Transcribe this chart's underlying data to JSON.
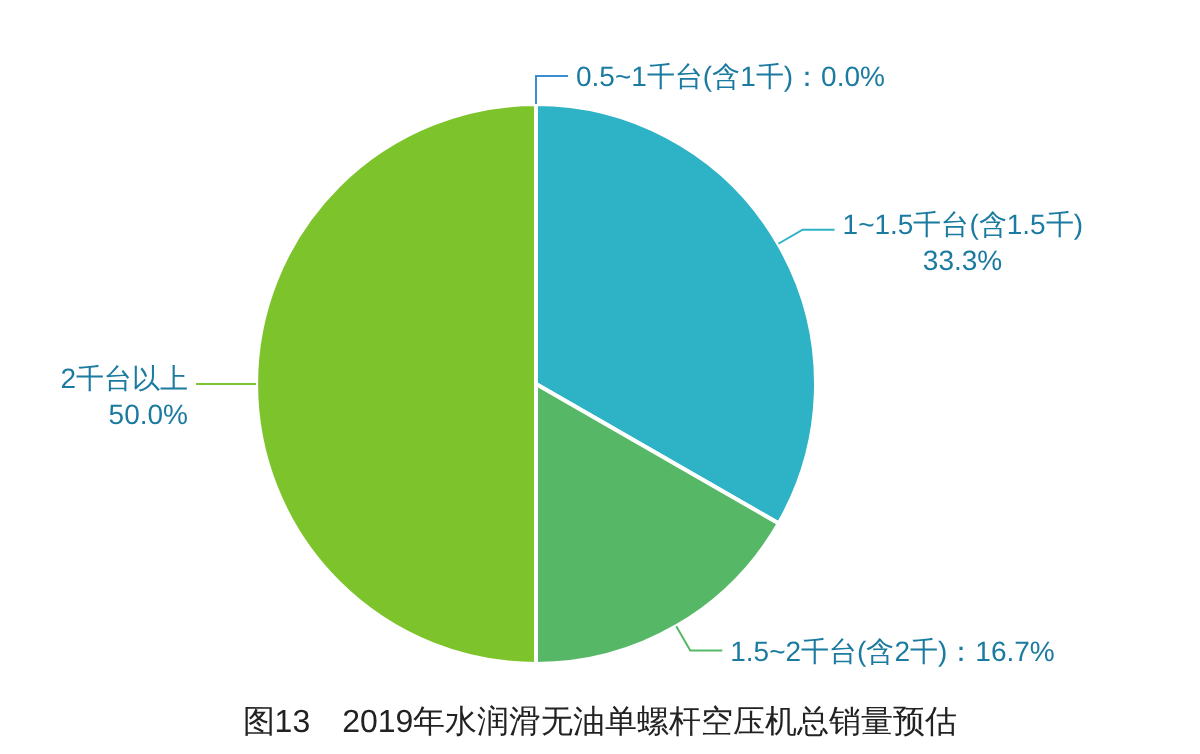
{
  "chart_data": {
    "type": "pie",
    "title": "图13　2019年水润滑无油单螺杆空压机总销量预估",
    "categories": [
      "0.5~1千台(含1千)",
      "1~1.5千台(含1.5千)",
      "1.5~2千台(含2千)",
      "2千台以上"
    ],
    "values": [
      0.0,
      33.3,
      16.7,
      50.0
    ],
    "value_labels": [
      "0.0%",
      "33.3%",
      "16.7%",
      "50.0%"
    ],
    "colors": [
      "#3b8fd0",
      "#2eb2c6",
      "#56b866",
      "#7dc32c"
    ]
  }
}
